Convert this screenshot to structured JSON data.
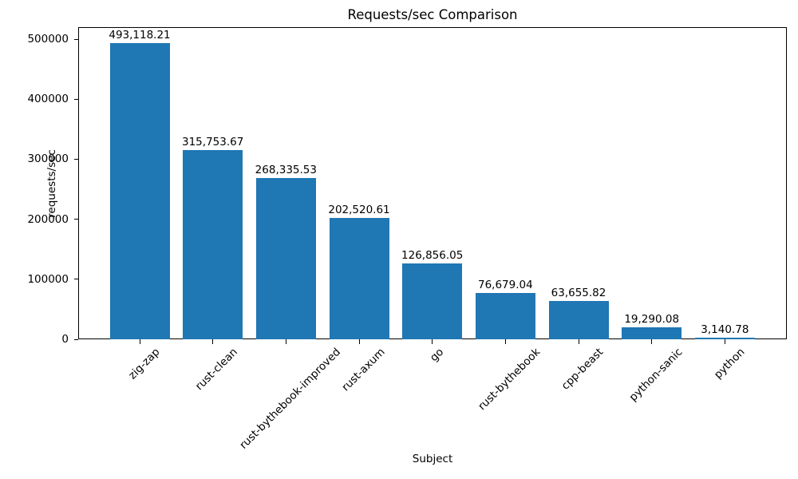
{
  "chart_data": {
    "type": "bar",
    "title": "Requests/sec Comparison",
    "xlabel": "Subject",
    "ylabel": "requests/sec",
    "categories": [
      "zig-zap",
      "rust-clean",
      "rust-bythebook-improved",
      "rust-axum",
      "go",
      "rust-bythebook",
      "cpp-beast",
      "python-sanic",
      "python"
    ],
    "values": [
      493118.21,
      315753.67,
      268335.53,
      202520.61,
      126856.05,
      76679.04,
      63655.82,
      19290.08,
      3140.78
    ],
    "value_labels": [
      "493,118.21",
      "315,753.67",
      "268,335.53",
      "202,520.61",
      "126,856.05",
      "76,679.04",
      "63,655.82",
      "19,290.08",
      "3,140.78"
    ],
    "y_ticks": [
      0,
      100000,
      200000,
      300000,
      400000,
      500000
    ],
    "y_tick_labels": [
      "0",
      "100000",
      "200000",
      "300000",
      "400000",
      "500000"
    ],
    "ylim": [
      0,
      520000
    ],
    "bar_color": "#1f77b4",
    "text_color": "#000000",
    "background_color": "#ffffff",
    "grid": false,
    "legend": null
  }
}
